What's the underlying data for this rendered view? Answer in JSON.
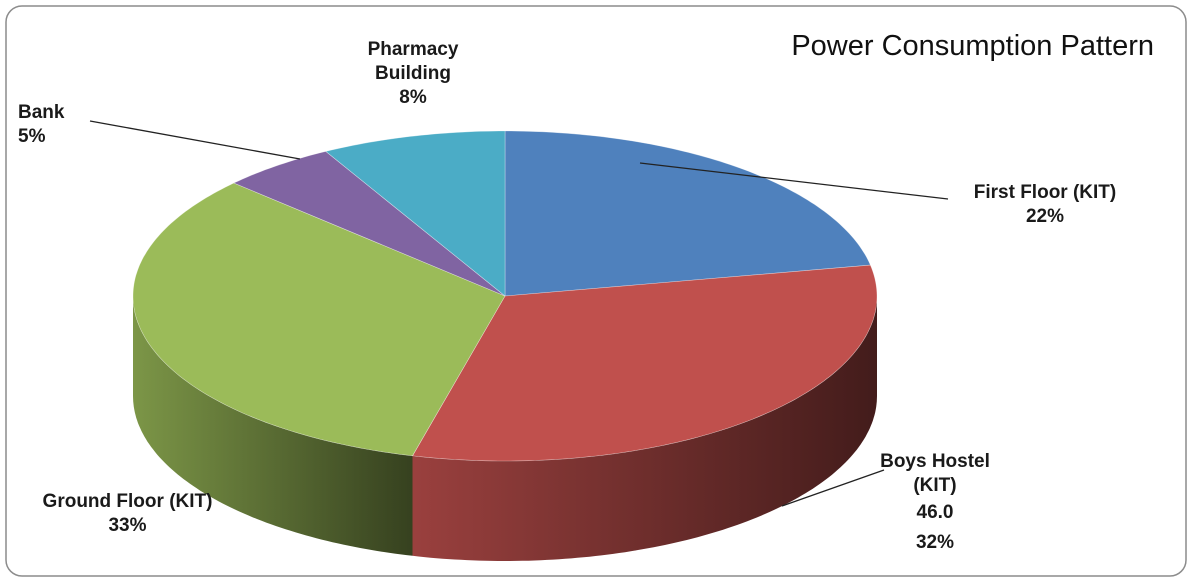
{
  "chart_data": {
    "type": "pie",
    "title": "Power Consumption Pattern",
    "categories": [
      "First Floor (KIT)",
      "Boys Hostel (KIT)",
      "Ground Floor (KIT)",
      "Bank",
      "Pharmacy Building"
    ],
    "values": [
      22,
      32,
      33,
      5,
      8
    ],
    "value_labels": [
      "22%",
      "32%",
      "33%",
      "5%",
      "8%"
    ],
    "colors": [
      "#4f81bd",
      "#c0504d",
      "#9bbb59",
      "#8064a2",
      "#4bacc6"
    ],
    "annotations": [
      "46.0"
    ]
  }
}
